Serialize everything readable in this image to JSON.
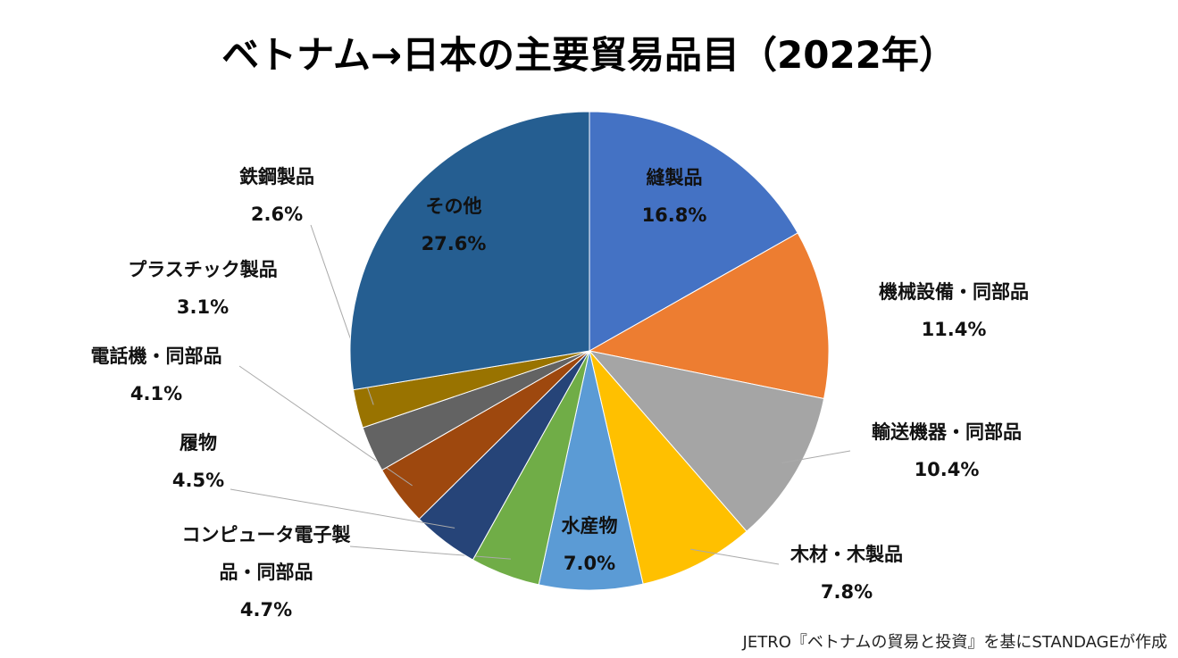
{
  "chart_data": {
    "type": "pie",
    "title": "ベトナム→日本の主要貿易品目（2022年）",
    "categories": [
      "縫製品",
      "機械設備・同部品",
      "輸送機器・同部品",
      "木材・木製品",
      "水産物",
      "コンピュータ電子製品・同部品",
      "履物",
      "電話機・同部品",
      "プラスチック製品",
      "鉄鋼製品",
      "その他"
    ],
    "values": [
      16.8,
      11.4,
      10.4,
      7.8,
      7.0,
      4.7,
      4.5,
      4.1,
      3.1,
      2.6,
      27.6
    ],
    "value_labels": [
      "16.8%",
      "11.4%",
      "10.4%",
      "7.8%",
      "7.0%",
      "4.7%",
      "4.5%",
      "4.1%",
      "3.1%",
      "2.6%",
      "27.6%"
    ],
    "colors": [
      "#4472c4",
      "#ed7d31",
      "#a5a5a5",
      "#ffc000",
      "#5b9bd5",
      "#70ad47",
      "#264478",
      "#9e480e",
      "#636363",
      "#997300",
      "#255e91"
    ],
    "source": "JETRO『ベトナムの貿易と投資』を基にSTANDAGEが作成"
  }
}
